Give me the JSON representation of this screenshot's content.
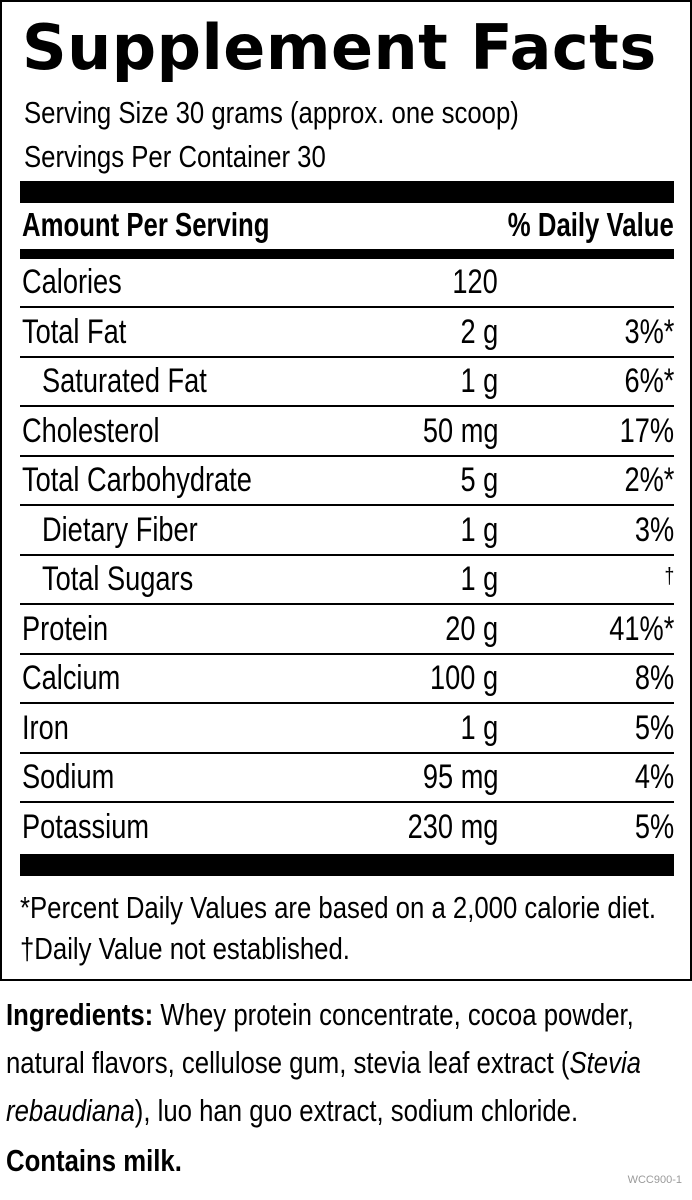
{
  "title": "Supplement Facts",
  "serving_size": "Serving Size 30 grams (approx. one scoop)",
  "servings_per_container": "Servings Per Container 30",
  "header": {
    "left": "Amount Per Serving",
    "right": "% Daily Value"
  },
  "nutrients": [
    {
      "name": "Calories",
      "amount": "120",
      "dv": "",
      "indent": false
    },
    {
      "name": "Total Fat",
      "amount": "2 g",
      "dv": "3%*",
      "indent": false
    },
    {
      "name": "Saturated Fat",
      "amount": "1 g",
      "dv": "6%*",
      "indent": true
    },
    {
      "name": "Cholesterol",
      "amount": "50 mg",
      "dv": "17%",
      "indent": false
    },
    {
      "name": "Total Carbohydrate",
      "amount": "5 g",
      "dv": "2%*",
      "indent": false
    },
    {
      "name": "Dietary Fiber",
      "amount": "1 g",
      "dv": "3%",
      "indent": true
    },
    {
      "name": "Total Sugars",
      "amount": "1 g",
      "dv": "†",
      "indent": true
    },
    {
      "name": "Protein",
      "amount": "20 g",
      "dv": "41%*",
      "indent": false
    },
    {
      "name": "Calcium",
      "amount": "100 g",
      "dv": "8%",
      "indent": false
    },
    {
      "name": "Iron",
      "amount": "1 g",
      "dv": "5%",
      "indent": false
    },
    {
      "name": "Sodium",
      "amount": "95 mg",
      "dv": "4%",
      "indent": false
    },
    {
      "name": "Potassium",
      "amount": "230 mg",
      "dv": "5%",
      "indent": false
    }
  ],
  "footnotes": [
    "*Percent Daily Values are based on a 2,000 calorie diet.",
    "†Daily Value not established."
  ],
  "ingredients": {
    "label": "Ingredients:",
    "line1": "Whey protein concentrate, cocoa powder,",
    "line2_start": "natural flavors, cellulose gum, stevia leaf extract (",
    "italic1": "Stevia",
    "italic2": "rebaudiana",
    "line3_rest": "), luo han guo extract, sodium chloride."
  },
  "contains": "Contains milk.",
  "product_code": "WCC900-1"
}
